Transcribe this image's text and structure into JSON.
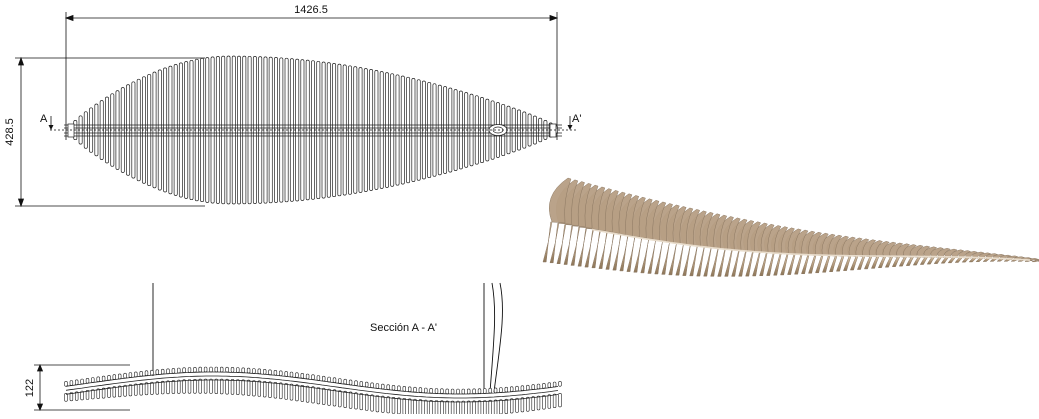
{
  "drawing": {
    "top_view": {
      "width_dimension": "1426.5",
      "height_dimension": "428.5",
      "section_mark_left": "A",
      "section_mark_right": "A'"
    },
    "section_view": {
      "title": "Sección A - A'",
      "height_dimension": "122"
    },
    "render": {
      "description_color": "#b79f84",
      "shadow_color": "#8a7660"
    }
  }
}
